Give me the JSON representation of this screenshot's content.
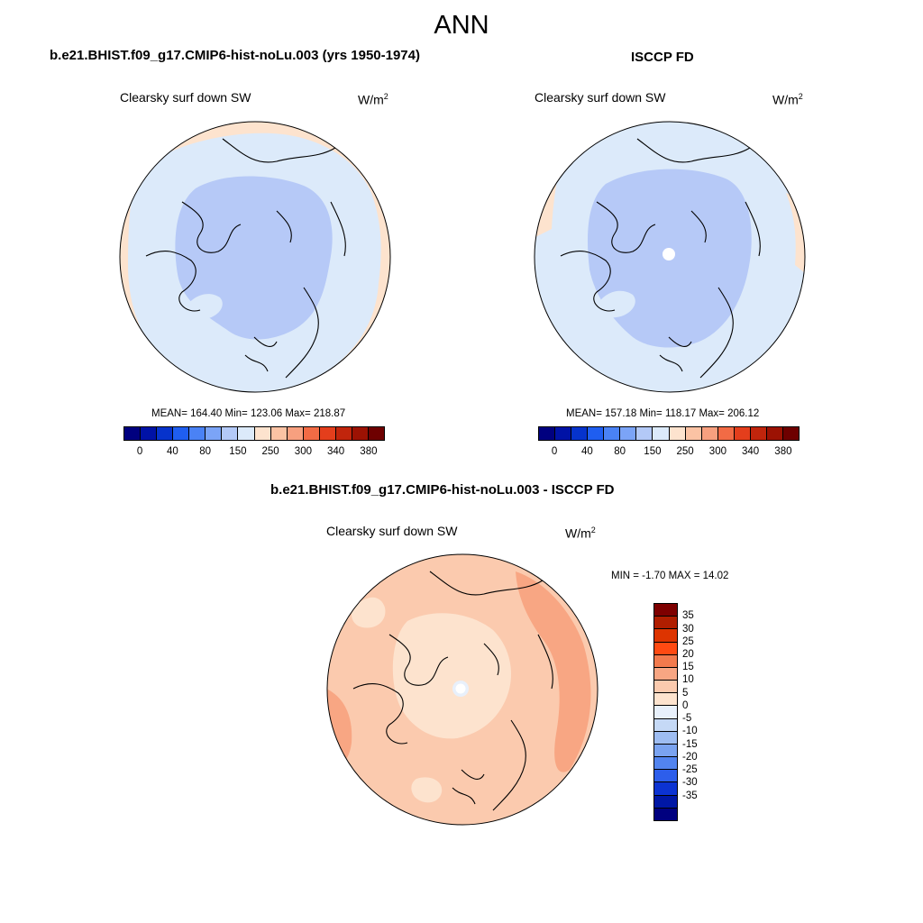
{
  "title": "ANN",
  "panels": {
    "model": {
      "title": "b.e21.BHIST.f09_g17.CMIP6-hist-noLu.003 (yrs 1950-1974)",
      "field": "Clearsky surf down SW",
      "units": "W/m",
      "units_sup": "2",
      "stats": "MEAN= 164.40  Min= 123.06  Max= 218.87"
    },
    "obs": {
      "title": "ISCCP FD",
      "field": "Clearsky surf down SW",
      "units": "W/m",
      "units_sup": "2",
      "stats": "MEAN= 157.18  Min= 118.17  Max= 206.12"
    },
    "diff": {
      "title": "b.e21.BHIST.f09_g17.CMIP6-hist-noLu.003 - ISCCP FD",
      "field": "Clearsky surf down SW",
      "units": "W/m",
      "units_sup": "2",
      "stats": "MIN =  -1.70 MAX =  14.02"
    }
  },
  "colorbar_abs": {
    "colors": [
      "#00007f",
      "#0012a6",
      "#0633cc",
      "#1f5ef0",
      "#4a82f5",
      "#7ba4f7",
      "#b3c9f7",
      "#dceafa",
      "#fde3ce",
      "#fbc3a4",
      "#f7a07f",
      "#f26b45",
      "#e43e1c",
      "#c1250c",
      "#9c1203",
      "#6e0000"
    ],
    "labels": [
      "0",
      "40",
      "80",
      "150",
      "250",
      "300",
      "340",
      "380"
    ]
  },
  "colorbar_diff": {
    "colors": [
      "#7e0000",
      "#b01e00",
      "#dd3400",
      "#ff4a12",
      "#f27a4d",
      "#f8a683",
      "#fbcaae",
      "#fde3ce",
      "#e8f0fb",
      "#c5d9f6",
      "#9ebdf2",
      "#7aa3f0",
      "#5284ef",
      "#2d5eeb",
      "#0c33d2",
      "#0017a5",
      "#00007f"
    ],
    "labels": [
      "35",
      "30",
      "25",
      "20",
      "15",
      "10",
      "5",
      "0",
      "-5",
      "-10",
      "-15",
      "-20",
      "-25",
      "-30",
      "-35"
    ]
  },
  "map_colors": {
    "abs_low": "#b6c9f7",
    "abs_mid": "#dceafa",
    "abs_high": "#fde3ce",
    "diff_low": "#fde3ce",
    "diff_mid": "#fbcaae",
    "diff_high": "#f8a683",
    "diff_neg": "#e8f0fb"
  }
}
